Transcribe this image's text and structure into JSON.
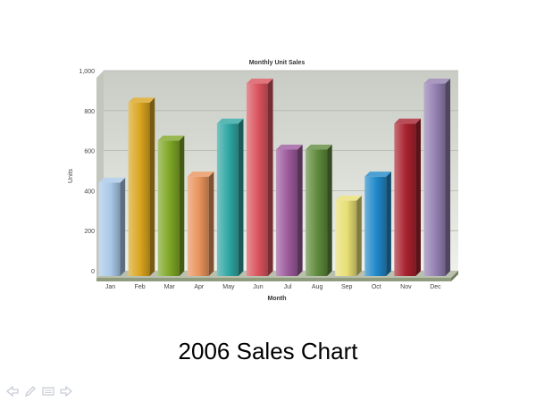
{
  "slide": {
    "caption": "2006 Sales Chart"
  },
  "nav": {
    "prev_icon": "arrow-left-icon",
    "pen_icon": "pen-icon",
    "menu_icon": "slide-menu-icon",
    "next_icon": "arrow-right-icon",
    "icon_color": "#c9ced6"
  },
  "chart_data": {
    "type": "bar",
    "title": "Monthly Unit Sales",
    "xlabel": "Month",
    "ylabel": "Units",
    "categories": [
      "Jan",
      "Feb",
      "Mar",
      "Apr",
      "May",
      "Jun",
      "Jul",
      "Aug",
      "Sep",
      "Oct",
      "Nov",
      "Dec"
    ],
    "values": [
      440,
      840,
      650,
      470,
      735,
      935,
      605,
      605,
      350,
      470,
      735,
      935
    ],
    "ylim": [
      0,
      1000
    ],
    "yticks": [
      0,
      200,
      400,
      600,
      800,
      1000
    ],
    "ytick_labels": [
      "0",
      "200",
      "400",
      "600",
      "800",
      "1,000"
    ],
    "grid": true,
    "legend": "none",
    "colors": [
      "#a9c8e8",
      "#d9a520",
      "#7ea625",
      "#e8935c",
      "#2fa6a3",
      "#d9535d",
      "#9c5a9c",
      "#5f8a3c",
      "#e8df74",
      "#1f88c9",
      "#a8212e",
      "#9480b2"
    ],
    "plot_background": "#d8dbd4"
  }
}
